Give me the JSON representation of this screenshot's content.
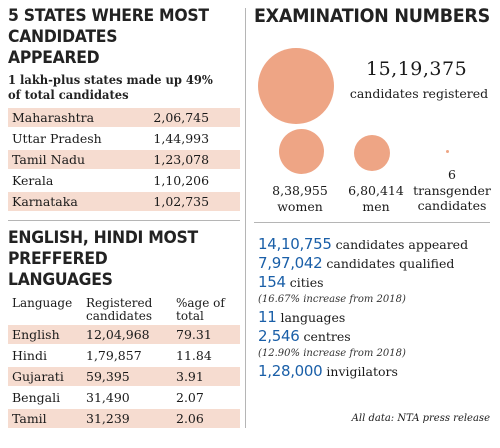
{
  "chart_data": [
    {
      "type": "table",
      "title": "5 STATES WHERE MOST CANDIDATES APPEARED",
      "subtitle": "1 lakh-plus states made up 49% of total candidates",
      "rows": [
        {
          "state": "Maharashtra",
          "value": "2,06,745"
        },
        {
          "state": "Uttar Pradesh",
          "value": "1,44,993"
        },
        {
          "state": "Tamil Nadu",
          "value": "1,23,078"
        },
        {
          "state": "Kerala",
          "value": "1,10,206"
        },
        {
          "state": "Karnataka",
          "value": "1,02,735"
        }
      ]
    },
    {
      "type": "table",
      "title": "ENGLISH, HINDI MOST PREFFERED LANGUAGES",
      "columns": [
        "Language",
        "Registered candidates",
        "%age of total"
      ],
      "rows": [
        {
          "language": "English",
          "registered": "12,04,968",
          "pct": "79.31"
        },
        {
          "language": "Hindi",
          "registered": "1,79,857",
          "pct": "11.84"
        },
        {
          "language": "Gujarati",
          "registered": "59,395",
          "pct": "3.91"
        },
        {
          "language": "Bengali",
          "registered": "31,490",
          "pct": "2.07"
        },
        {
          "language": "Tamil",
          "registered": "31,239",
          "pct": "2.06"
        }
      ]
    },
    {
      "type": "bubble",
      "title": "EXAMINATION NUMBERS",
      "color": "#eea585",
      "bubbles": [
        {
          "value": "15,19,375",
          "label": "candidates registered",
          "amount": 1519375
        },
        {
          "value": "8,38,955",
          "label": "women",
          "amount": 838955
        },
        {
          "value": "6,80,414",
          "label": "men",
          "amount": 680414
        },
        {
          "value": "6",
          "label": "transgender candidates",
          "amount": 6
        }
      ]
    }
  ],
  "stats": [
    {
      "num": "14,10,755",
      "text": "candidates appeared"
    },
    {
      "num": "7,97,042",
      "text": "candidates qualified"
    },
    {
      "num": "154",
      "text": "cities",
      "note": "(16.67% increase from 2018)"
    },
    {
      "num": "11",
      "text": "languages"
    },
    {
      "num": "2,546",
      "text": "centres",
      "note": "(12.90% increase from 2018)"
    },
    {
      "num": "1,28,000",
      "text": "invigilators"
    }
  ],
  "source": "All data: NTA press release"
}
